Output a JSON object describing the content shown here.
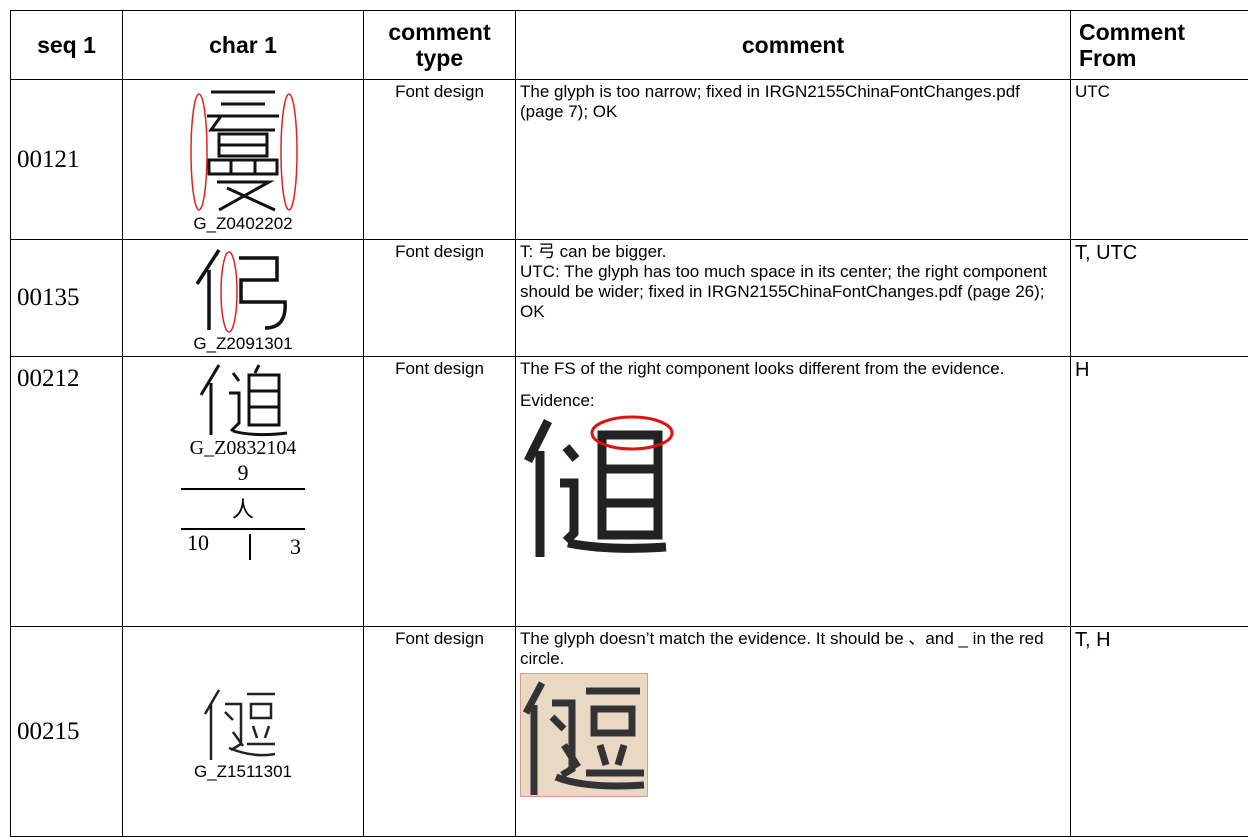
{
  "header": {
    "columns": [
      "seq 1",
      "char 1",
      "comment type",
      "comment",
      "Comment From"
    ]
  },
  "table": {
    "rows": [
      {
        "seq": "00121",
        "code": "G_Z0402202",
        "type": "Font design",
        "comment": [
          "The glyph is too narrow; fixed in IRGN2155ChinaFontChanges.pdf (page 7); OK"
        ],
        "from": "UTC"
      },
      {
        "seq": "00135",
        "code": "G_Z2091301",
        "type": "Font design",
        "comment": [
          "T: 弓 can be bigger.",
          "UTC: The glyph has too much space in its center; the right component should be wider; fixed in IRGN2155ChinaFontChanges.pdf (page 26); OK"
        ],
        "from": "T, UTC"
      },
      {
        "seq": "00212",
        "code": "G_Z0832104",
        "strokes": "9",
        "radical": "人",
        "total": "10",
        "residual": "3",
        "type": "Font design",
        "comment": [
          "The FS of the right component looks different from the evidence.",
          "Evidence:"
        ],
        "from": "H"
      },
      {
        "seq": "00215",
        "code": "G_Z1511301",
        "type": "Font design",
        "comment": [
          "The glyph doesn’t match the evidence. It should be 、and _ in the red circle."
        ],
        "from": "T, H"
      }
    ]
  }
}
